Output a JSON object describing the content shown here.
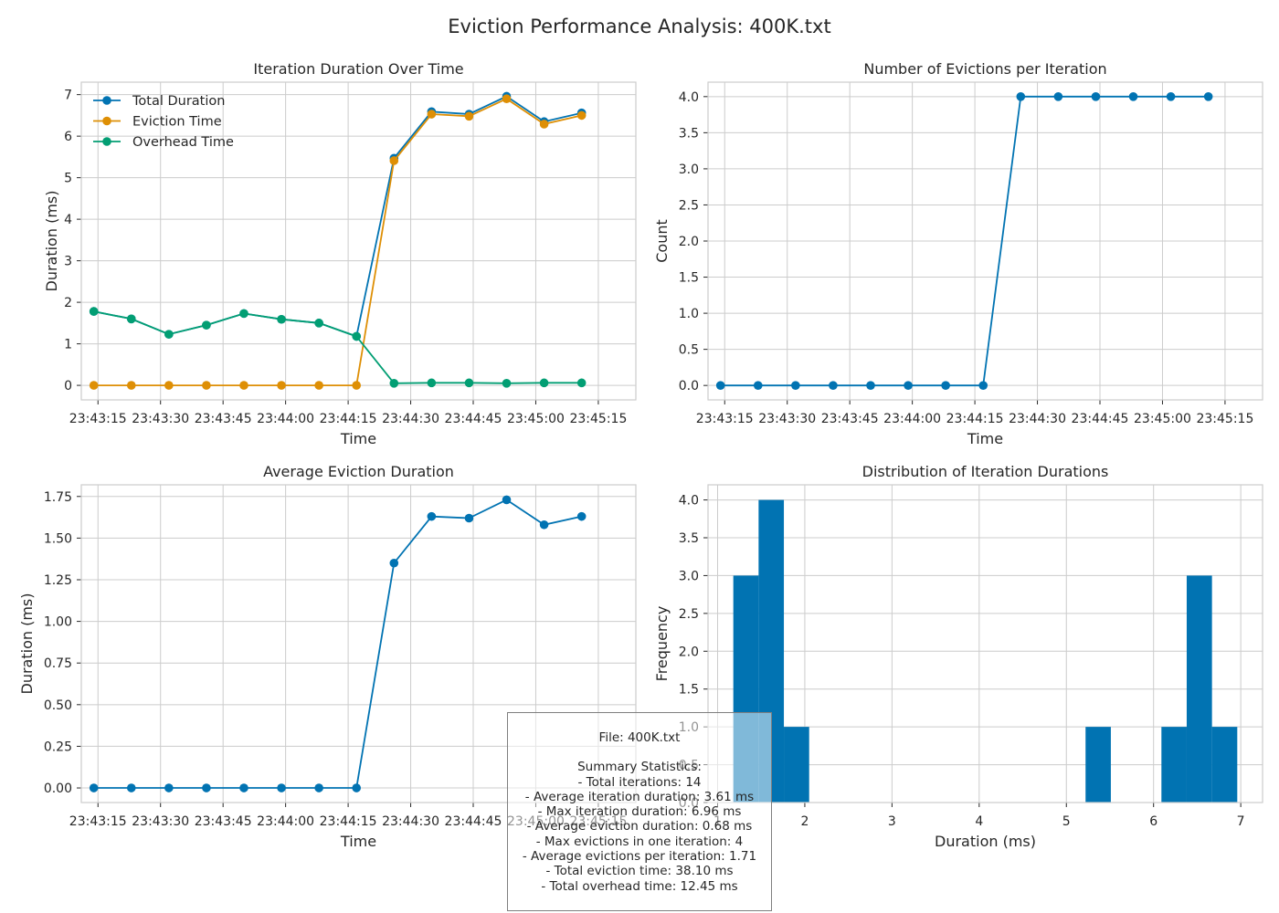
{
  "figure_title": "Eviction Performance Analysis: 400K.txt",
  "colors": {
    "blue": "#0173b2",
    "orange": "#de8f05",
    "green": "#029e73",
    "grid": "#cccccc",
    "axis": "#cccccc",
    "text": "#262626"
  },
  "stats": {
    "file": "File: 400K.txt",
    "heading": "Summary Statistics:",
    "lines": [
      "- Total iterations: 14",
      "- Average iteration duration: 3.61 ms",
      "- Max iteration duration: 6.96 ms",
      "- Average eviction duration: 0.68 ms",
      "- Max evictions in one iteration: 4",
      "- Average evictions per iteration: 1.71",
      "- Total eviction time: 38.10 ms",
      "- Total overhead time: 12.45 ms"
    ]
  },
  "chart_data": [
    {
      "type": "line",
      "title": "Iteration Duration Over Time",
      "xlabel": "Time",
      "ylabel": "Duration (ms)",
      "x": [
        "23:43:14",
        "23:43:23",
        "23:43:32",
        "23:43:41",
        "23:43:50",
        "23:43:59",
        "23:44:08",
        "23:44:17",
        "23:44:26",
        "23:44:35",
        "23:44:44",
        "23:44:53",
        "23:45:02",
        "23:45:11"
      ],
      "xticks": [
        "23:43:15",
        "23:43:30",
        "23:43:45",
        "23:44:00",
        "23:44:15",
        "23:44:30",
        "23:44:45",
        "23:45:00",
        "23:45:15"
      ],
      "ylim": [
        -0.35,
        7.3
      ],
      "yticks": [
        "0",
        "1",
        "2",
        "3",
        "4",
        "5",
        "6",
        "7"
      ],
      "grid": true,
      "legend": "top-left",
      "series": [
        {
          "name": "Total Duration",
          "color": "#0173b2",
          "values": [
            1.78,
            1.6,
            1.23,
            1.45,
            1.73,
            1.59,
            1.5,
            1.18,
            5.47,
            6.59,
            6.53,
            6.96,
            6.35,
            6.56
          ]
        },
        {
          "name": "Eviction Time",
          "color": "#de8f05",
          "values": [
            0,
            0,
            0,
            0,
            0,
            0,
            0,
            0,
            5.41,
            6.53,
            6.48,
            6.9,
            6.29,
            6.5
          ]
        },
        {
          "name": "Overhead Time",
          "color": "#029e73",
          "values": [
            1.78,
            1.6,
            1.23,
            1.45,
            1.73,
            1.59,
            1.5,
            1.18,
            0.05,
            0.06,
            0.06,
            0.05,
            0.06,
            0.06
          ]
        }
      ]
    },
    {
      "type": "line",
      "title": "Number of Evictions per Iteration",
      "xlabel": "Time",
      "ylabel": "Count",
      "x": [
        "23:43:14",
        "23:43:23",
        "23:43:32",
        "23:43:41",
        "23:43:50",
        "23:43:59",
        "23:44:08",
        "23:44:17",
        "23:44:26",
        "23:44:35",
        "23:44:44",
        "23:44:53",
        "23:45:02",
        "23:45:11"
      ],
      "xticks": [
        "23:43:15",
        "23:43:30",
        "23:43:45",
        "23:44:00",
        "23:44:15",
        "23:44:30",
        "23:44:45",
        "23:45:00",
        "23:45:15"
      ],
      "ylim": [
        -0.2,
        4.2
      ],
      "yticks": [
        "0.0",
        "0.5",
        "1.0",
        "1.5",
        "2.0",
        "2.5",
        "3.0",
        "3.5",
        "4.0"
      ],
      "grid": true,
      "series": [
        {
          "color": "#0173b2",
          "values": [
            0,
            0,
            0,
            0,
            0,
            0,
            0,
            0,
            4,
            4,
            4,
            4,
            4,
            4
          ]
        }
      ]
    },
    {
      "type": "line",
      "title": "Average Eviction Duration",
      "xlabel": "Time",
      "ylabel": "Duration (ms)",
      "x": [
        "23:43:14",
        "23:43:23",
        "23:43:32",
        "23:43:41",
        "23:43:50",
        "23:43:59",
        "23:44:08",
        "23:44:17",
        "23:44:26",
        "23:44:35",
        "23:44:44",
        "23:44:53",
        "23:45:02",
        "23:45:11"
      ],
      "xticks": [
        "23:43:15",
        "23:43:30",
        "23:43:45",
        "23:44:00",
        "23:44:15",
        "23:44:30",
        "23:44:45",
        "23:45:00",
        "23:45:15"
      ],
      "ylim": [
        -0.0875,
        1.82
      ],
      "yticks": [
        "0.00",
        "0.25",
        "0.50",
        "0.75",
        "1.00",
        "1.25",
        "1.50",
        "1.75"
      ],
      "grid": true,
      "series": [
        {
          "color": "#0173b2",
          "values": [
            0,
            0,
            0,
            0,
            0,
            0,
            0,
            0,
            1.35,
            1.63,
            1.62,
            1.73,
            1.58,
            1.63
          ]
        }
      ]
    },
    {
      "type": "bar",
      "subtype": "histogram",
      "title": "Distribution of Iteration Durations",
      "xlabel": "Duration (ms)",
      "ylabel": "Frequency",
      "bins": [
        {
          "x0": 1.18,
          "x1": 1.47,
          "count": 3
        },
        {
          "x0": 1.47,
          "x1": 1.76,
          "count": 4
        },
        {
          "x0": 1.76,
          "x1": 2.05,
          "count": 1
        },
        {
          "x0": 5.22,
          "x1": 5.51,
          "count": 1
        },
        {
          "x0": 6.09,
          "x1": 6.38,
          "count": 1
        },
        {
          "x0": 6.38,
          "x1": 6.67,
          "count": 3
        },
        {
          "x0": 6.67,
          "x1": 6.96,
          "count": 1
        }
      ],
      "xlim": [
        0.89,
        7.25
      ],
      "ylim": [
        0,
        4.2
      ],
      "xticks": [
        "1",
        "2",
        "3",
        "4",
        "5",
        "6",
        "7"
      ],
      "yticks": [
        "0.0",
        "0.5",
        "1.0",
        "1.5",
        "2.0",
        "2.5",
        "3.0",
        "3.5",
        "4.0"
      ],
      "grid": true,
      "color": "#0173b2"
    }
  ]
}
